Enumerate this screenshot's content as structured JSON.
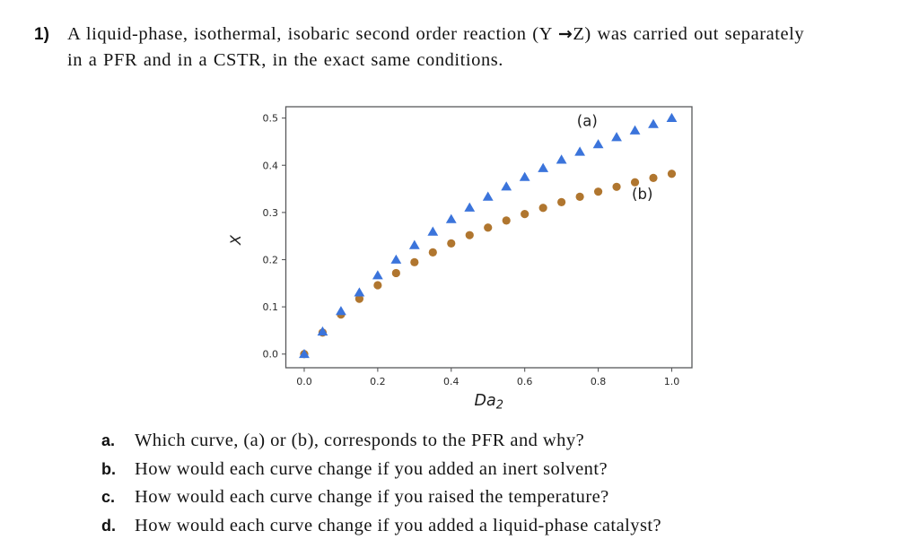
{
  "problem": {
    "number": "1)",
    "statement_line1_pre": "A liquid-phase, isothermal, isobaric second order reaction (Y ",
    "reaction_arrow": "→",
    "statement_line1_post": "Z) was carried out separately",
    "statement_line2": "in a PFR and in a CSTR, in the exact same conditions."
  },
  "questions": [
    {
      "marker": "a.",
      "text": "Which curve, (a) or (b), corresponds to the PFR and why?"
    },
    {
      "marker": "b.",
      "text": "How would each curve change if you added an inert solvent?"
    },
    {
      "marker": "c.",
      "text": "How would each curve change if you raised the temperature?"
    },
    {
      "marker": "d.",
      "text": "How would each curve change if you added a liquid-phase catalyst?"
    }
  ],
  "chart_data": {
    "type": "scatter",
    "title": "",
    "xlabel_main": "Da",
    "xlabel_sub": "2",
    "ylabel": "X",
    "grid": false,
    "legend": "none (in-plot text annotations)",
    "xlim": [
      -0.05,
      1.055
    ],
    "ylim": [
      -0.029,
      0.524
    ],
    "x_tick_labels": [
      "0.0",
      "0.2",
      "0.4",
      "0.6",
      "0.8",
      "1.0"
    ],
    "y_tick_labels": [
      "0.0",
      "0.1",
      "0.2",
      "0.3",
      "0.4",
      "0.5"
    ],
    "x": [
      0,
      0.05,
      0.1,
      0.15,
      0.2,
      0.25,
      0.3,
      0.35,
      0.4,
      0.45,
      0.5,
      0.55,
      0.6,
      0.65,
      0.7,
      0.75,
      0.8,
      0.85,
      0.9,
      0.95,
      1.0
    ],
    "series": [
      {
        "name": "(a)",
        "marker": "triangle",
        "color": "#3b74db",
        "values": [
          0,
          0.0476,
          0.0909,
          0.1304,
          0.1667,
          0.2,
          0.2308,
          0.2593,
          0.2857,
          0.3103,
          0.3333,
          0.3548,
          0.375,
          0.3939,
          0.4118,
          0.4286,
          0.4444,
          0.4595,
          0.4737,
          0.4872,
          0.5
        ]
      },
      {
        "name": "(b)",
        "marker": "circle",
        "color": "#b0762f",
        "values": [
          0,
          0.0455,
          0.0839,
          0.117,
          0.1459,
          0.1716,
          0.1946,
          0.2154,
          0.2344,
          0.2519,
          0.2679,
          0.2829,
          0.2967,
          0.3097,
          0.3219,
          0.3333,
          0.3441,
          0.3543,
          0.364,
          0.3732,
          0.382
        ]
      }
    ],
    "annotations": [
      {
        "text": "(a)",
        "x": 0.77,
        "y": 0.483
      },
      {
        "text": "(b)",
        "x": 0.92,
        "y": 0.328
      }
    ],
    "style": {
      "spine_color": "#58595b",
      "tick_label_color": "#2a2a2a",
      "annotation_color": "#1f1f1f"
    }
  }
}
